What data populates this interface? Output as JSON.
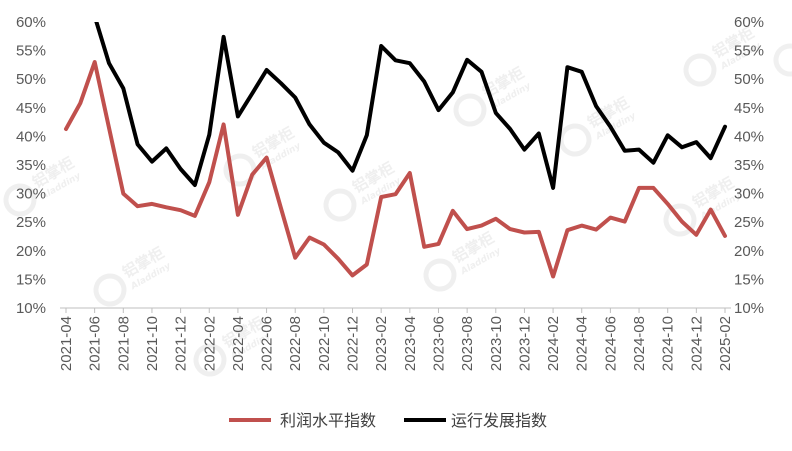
{
  "chart_data": {
    "type": "line",
    "x": [
      "2021-04",
      "2021-05",
      "2021-06",
      "2021-07",
      "2021-08",
      "2021-09",
      "2021-10",
      "2021-11",
      "2021-12",
      "2022-01",
      "2022-02",
      "2022-03",
      "2022-04",
      "2022-05",
      "2022-06",
      "2022-07",
      "2022-08",
      "2022-09",
      "2022-10",
      "2022-11",
      "2022-12",
      "2023-01",
      "2023-02",
      "2023-03",
      "2023-04",
      "2023-05",
      "2023-06",
      "2023-07",
      "2023-08",
      "2023-09",
      "2023-10",
      "2023-11",
      "2023-12",
      "2024-01",
      "2024-02",
      "2024-03",
      "2024-04",
      "2024-05",
      "2024-06",
      "2024-07",
      "2024-08",
      "2024-09",
      "2024-10",
      "2024-11",
      "2024-12",
      "2025-01",
      "2025-02"
    ],
    "x_tick_labels": [
      "2021-04",
      "2021-06",
      "2021-08",
      "2021-10",
      "2021-12",
      "2022-02",
      "2022-04",
      "2022-06",
      "2022-08",
      "2022-10",
      "2022-12",
      "2023-02",
      "2023-04",
      "2023-06",
      "2023-08",
      "2023-10",
      "2023-12",
      "2024-02",
      "2024-04",
      "2024-06",
      "2024-08",
      "2024-10",
      "2024-12",
      "2025-02"
    ],
    "ylim": [
      10,
      60
    ],
    "y_tick_labels": [
      "10%",
      "15%",
      "20%",
      "25%",
      "30%",
      "35%",
      "40%",
      "45%",
      "50%",
      "55%",
      "60%"
    ],
    "y_ticks": [
      10,
      15,
      20,
      25,
      30,
      35,
      40,
      45,
      50,
      55,
      60
    ],
    "grid": false,
    "legend_position": "bottom",
    "series": [
      {
        "name": "利润水平指数",
        "color": "#C0504D",
        "values": [
          41.3,
          45.8,
          53.0,
          41.5,
          30.0,
          27.8,
          28.2,
          27.6,
          27.1,
          26.1,
          32.0,
          42.1,
          26.3,
          33.3,
          36.3,
          27.5,
          18.8,
          22.3,
          21.1,
          18.6,
          15.7,
          17.6,
          29.4,
          29.9,
          33.6,
          20.7,
          21.2,
          27.0,
          23.8,
          24.4,
          25.6,
          23.8,
          23.2,
          23.3,
          15.5,
          23.6,
          24.4,
          23.7,
          25.8,
          25.1,
          31.0,
          31.0,
          28.2,
          25.1,
          22.8,
          27.2,
          22.6
        ]
      },
      {
        "name": "运行发展指数",
        "color": "#000000",
        "values": [
          null,
          null,
          61.0,
          52.8,
          48.4,
          38.6,
          35.6,
          37.9,
          34.3,
          31.5,
          40.3,
          57.4,
          43.5,
          47.5,
          51.6,
          49.3,
          46.8,
          42.1,
          38.9,
          37.2,
          34.0,
          40.2,
          55.8,
          53.3,
          52.8,
          49.6,
          44.6,
          47.7,
          53.4,
          51.3,
          44.1,
          41.3,
          37.7,
          40.5,
          31.0,
          52.1,
          51.3,
          45.3,
          41.7,
          37.5,
          37.7,
          35.4,
          40.2,
          38.1,
          39.0,
          36.2,
          41.7
        ]
      }
    ]
  },
  "watermark": {
    "brand_cn": "铝掌柜",
    "brand_en": "Aladdiny"
  }
}
